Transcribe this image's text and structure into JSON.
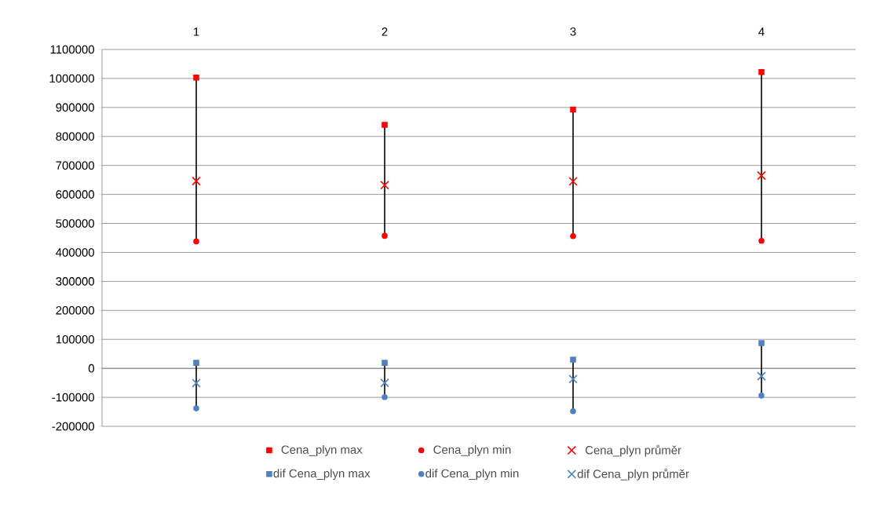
{
  "chart_data": {
    "type": "scatter",
    "categories": [
      "1",
      "2",
      "3",
      "4"
    ],
    "ylim": [
      -200000,
      1100000
    ],
    "yticks": [
      -200000,
      -100000,
      0,
      100000,
      200000,
      300000,
      400000,
      500000,
      600000,
      700000,
      800000,
      900000,
      1000000,
      1100000
    ],
    "grid": "y",
    "legend": "bottom",
    "series": [
      {
        "name": "Cena_plyn max",
        "color": "#ff0000",
        "marker": "square",
        "values": [
          1003000,
          840000,
          893000,
          1022000
        ]
      },
      {
        "name": "Cena_plyn min",
        "color": "#ff0000",
        "marker": "circle",
        "values": [
          438000,
          457000,
          456000,
          440000
        ]
      },
      {
        "name": "Cena_plyn průměr",
        "color": "#ff0000",
        "marker": "cross",
        "values": [
          646000,
          632000,
          645000,
          665000
        ]
      },
      {
        "name": "dif Cena_plyn max",
        "color": "#4f81bd",
        "marker": "square",
        "values": [
          19000,
          19000,
          30000,
          87000
        ]
      },
      {
        "name": "dif Cena_plyn min",
        "color": "#4f81bd",
        "marker": "circle",
        "values": [
          -138000,
          -99000,
          -148000,
          -94000
        ]
      },
      {
        "name": "dif Cena_plyn průměr",
        "color": "#4f81bd",
        "marker": "cross",
        "values": [
          -51000,
          -50000,
          -37000,
          -27000
        ]
      }
    ]
  }
}
